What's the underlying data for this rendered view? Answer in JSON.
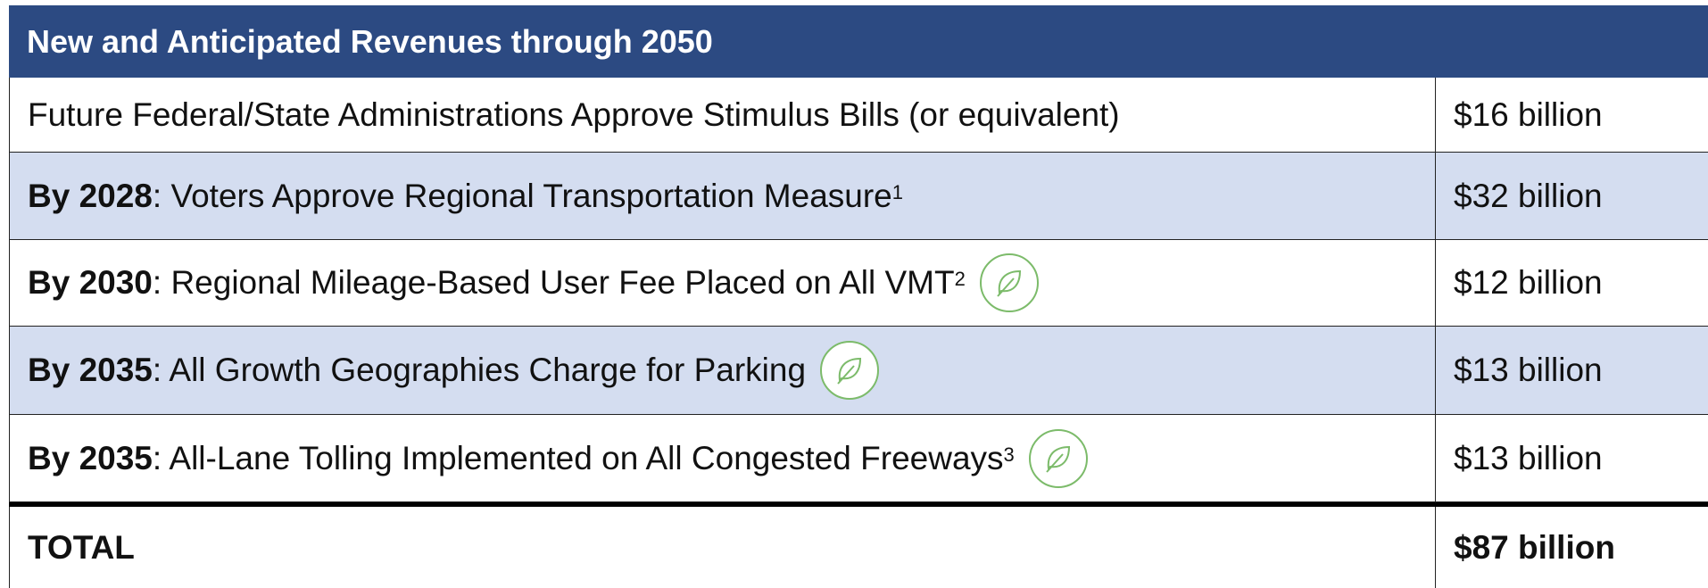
{
  "table": {
    "title": "New and Anticipated Revenues through 2050",
    "rows": [
      {
        "text": "Future Federal/State Administrations Approve Stimulus Bills (or equivalent)",
        "amount": "$16 billion",
        "shaded": false,
        "icon": false
      },
      {
        "lead": "By 2028",
        "text": ": Voters Approve Regional Transportation Measure",
        "note": "1",
        "amount": "$32 billion",
        "shaded": true,
        "icon": false
      },
      {
        "lead": "By 2030",
        "text": ": Regional Mileage-Based User Fee Placed on All VMT",
        "note": "2",
        "amount": "$12 billion",
        "shaded": false,
        "icon": true
      },
      {
        "lead": "By 2035",
        "text": ": All Growth Geographies Charge for Parking",
        "amount": "$13 billion",
        "shaded": true,
        "icon": true
      },
      {
        "lead": "By 2035",
        "text": ": All-Lane Tolling Implemented on All Congested Freeways",
        "note": "3",
        "amount": "$13 billion",
        "shaded": false,
        "icon": true
      }
    ],
    "total": {
      "label": "TOTAL",
      "amount": "$87 billion"
    }
  }
}
